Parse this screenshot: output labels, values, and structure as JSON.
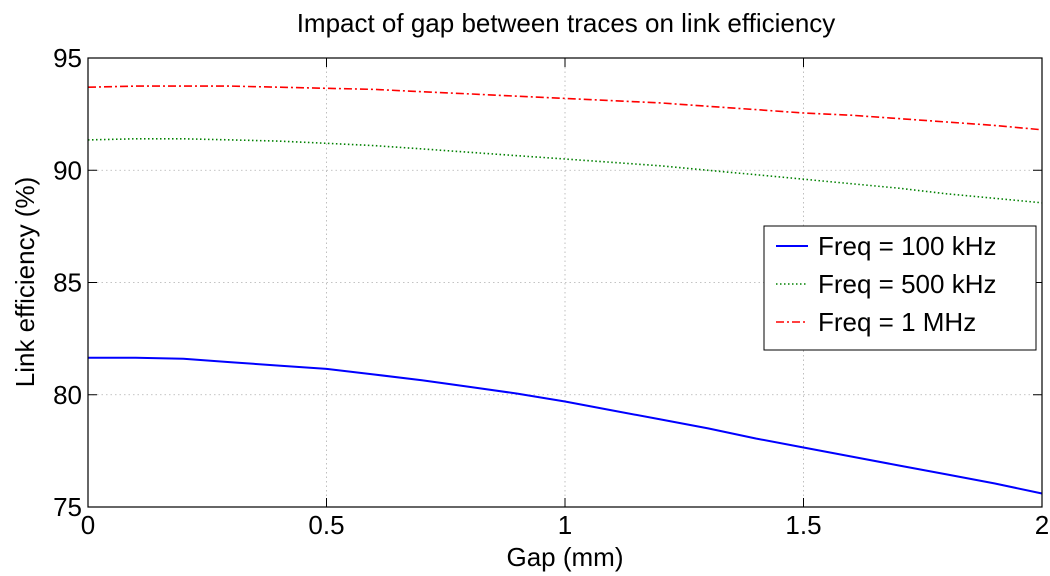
{
  "chart_data": {
    "type": "line",
    "title": "Impact of gap between traces on link efficiency",
    "xlabel": "Gap  (mm)",
    "ylabel": "Link efficiency (%)",
    "xlim": [
      0,
      2
    ],
    "ylim": [
      75,
      95
    ],
    "xticks": [
      0,
      0.5,
      1,
      1.5,
      2
    ],
    "xtick_labels": [
      "0",
      "0.5",
      "1",
      "1.5",
      "2"
    ],
    "yticks": [
      75,
      80,
      85,
      90,
      95
    ],
    "ytick_labels": [
      "75",
      "80",
      "85",
      "90",
      "95"
    ],
    "grid": true,
    "legend_position": "right",
    "x": [
      0,
      0.1,
      0.2,
      0.3,
      0.4,
      0.5,
      0.6,
      0.7,
      0.8,
      0.9,
      1.0,
      1.1,
      1.2,
      1.3,
      1.4,
      1.5,
      1.6,
      1.7,
      1.8,
      1.9,
      2.0
    ],
    "series": [
      {
        "name": "Freq = 100 kHz",
        "color": "#0000ff",
        "dash": "solid",
        "values": [
          81.65,
          81.65,
          81.6,
          81.45,
          81.3,
          81.15,
          80.9,
          80.65,
          80.35,
          80.05,
          79.7,
          79.3,
          78.9,
          78.5,
          78.05,
          77.65,
          77.25,
          76.85,
          76.45,
          76.05,
          75.6
        ]
      },
      {
        "name": "Freq = 500 kHz",
        "color": "#008000",
        "dash": "dotted",
        "values": [
          91.35,
          91.4,
          91.4,
          91.35,
          91.3,
          91.2,
          91.1,
          90.95,
          90.8,
          90.65,
          90.5,
          90.35,
          90.2,
          90.0,
          89.8,
          89.6,
          89.4,
          89.2,
          88.95,
          88.75,
          88.55
        ]
      },
      {
        "name": "Freq = 1 MHz",
        "color": "#ff0000",
        "dash": "dashdot",
        "values": [
          93.7,
          93.75,
          93.75,
          93.75,
          93.7,
          93.65,
          93.6,
          93.5,
          93.4,
          93.3,
          93.2,
          93.1,
          93.0,
          92.85,
          92.7,
          92.55,
          92.45,
          92.3,
          92.15,
          92.0,
          91.8
        ]
      }
    ]
  }
}
